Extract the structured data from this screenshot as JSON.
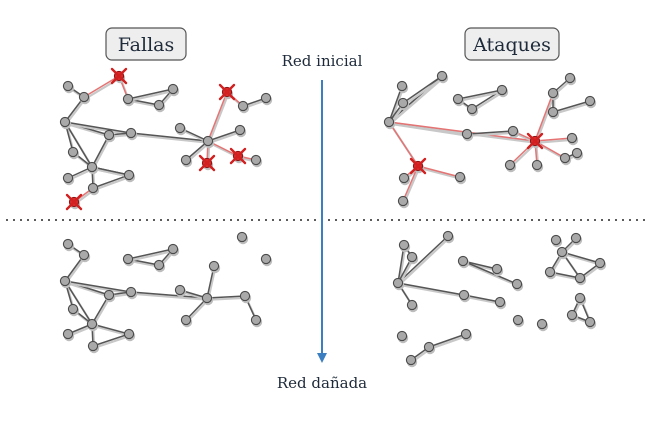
{
  "labels": {
    "left_title": "Fallas",
    "right_title": "Ataques",
    "top_label": "Red inicial",
    "bottom_label": "Red dañada"
  },
  "colors": {
    "arrow": "#3b7fc0",
    "node": "#a9a9a9",
    "failed": "#d21f1f",
    "edge": "#555555"
  }
}
